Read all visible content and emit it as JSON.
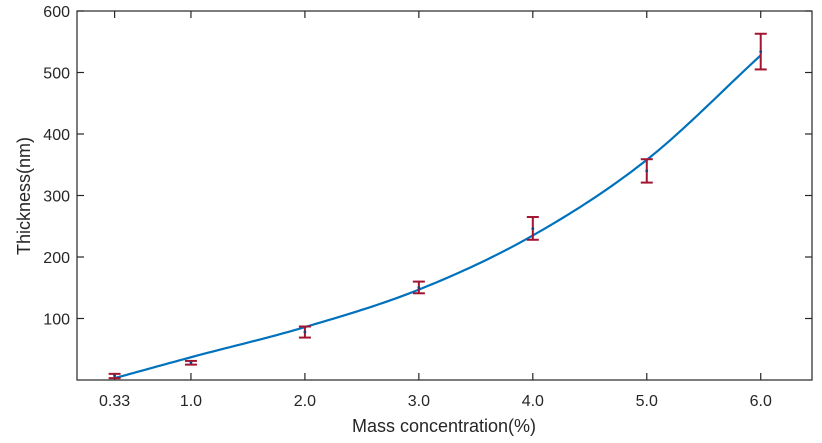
{
  "chart_data": {
    "type": "scatter",
    "xlabel": "Mass concentration(%)",
    "ylabel": "Thickness(nm)",
    "xlim": [
      0.0,
      6.45
    ],
    "ylim": [
      0,
      600
    ],
    "x_ticks": [
      0.33,
      1.0,
      2.0,
      3.0,
      4.0,
      5.0,
      6.0
    ],
    "x_tick_labels": [
      "0.33",
      "1.0",
      "2.0",
      "3.0",
      "4.0",
      "5.0",
      "6.0"
    ],
    "y_ticks": [
      100,
      200,
      300,
      400,
      500,
      600
    ],
    "y_tick_labels": [
      "100",
      "200",
      "300",
      "400",
      "500",
      "600"
    ],
    "grid": false,
    "series": [
      {
        "type": "errorbar",
        "color": "#a2142f",
        "x": [
          0.33,
          1.0,
          2.0,
          3.0,
          4.0,
          5.0,
          6.0
        ],
        "y": [
          7,
          28,
          78,
          150,
          246,
          340,
          534
        ],
        "y_err_low": [
          3,
          25,
          69,
          141,
          228,
          321,
          505
        ],
        "y_err_high": [
          10,
          31,
          87,
          160,
          265,
          359,
          563
        ]
      },
      {
        "type": "line",
        "color": "#0072bd",
        "x": [
          0.33,
          1.0,
          2.0,
          3.0,
          4.0,
          5.0,
          6.0
        ],
        "y": [
          3,
          37,
          86,
          147,
          235,
          358,
          528
        ]
      }
    ]
  }
}
